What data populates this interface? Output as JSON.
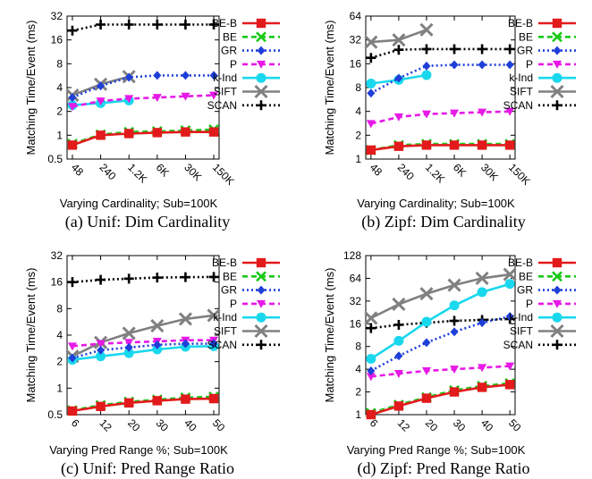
{
  "chart_data": [
    {
      "type": "line",
      "caption": "(a) Unif: Dim Cardinality",
      "xlabel": "Varying Cardinality; Sub=100K",
      "ylabel": "Matching Time/Event (ms)",
      "y_scale": "log2",
      "ylim": [
        0.5,
        32
      ],
      "yticks": [
        "0.5",
        "1",
        "2",
        "4",
        "8",
        "16",
        "32"
      ],
      "categories": [
        "48",
        "240",
        "1.2K",
        "6K",
        "30K",
        "150K"
      ],
      "xtick_rotation": 45,
      "legend": "top-right",
      "series": [
        {
          "name": "BE-B",
          "values": [
            0.75,
            1.0,
            1.05,
            1.08,
            1.1,
            1.1
          ]
        },
        {
          "name": "BE",
          "values": [
            0.78,
            1.02,
            1.1,
            1.12,
            1.15,
            1.18
          ]
        },
        {
          "name": "GR",
          "values": [
            3.0,
            4.2,
            5.4,
            5.7,
            5.7,
            5.7
          ]
        },
        {
          "name": "P",
          "values": [
            2.3,
            2.7,
            2.9,
            3.0,
            3.1,
            3.2
          ]
        },
        {
          "name": "k-Ind",
          "values": [
            2.4,
            2.55,
            2.75,
            null,
            null,
            null
          ]
        },
        {
          "name": "SIFT",
          "values": [
            3.2,
            4.4,
            5.5,
            null,
            null,
            null
          ]
        },
        {
          "name": "SCAN",
          "values": [
            21,
            25,
            25,
            25,
            25,
            25
          ]
        }
      ]
    },
    {
      "type": "line",
      "caption": "(b) Zipf: Dim Cardinality",
      "xlabel": "Varying Cardinality; Sub=100K",
      "ylabel": "Matching Time/Event (ms)",
      "y_scale": "log2",
      "ylim": [
        1,
        64
      ],
      "yticks": [
        "1",
        "2",
        "4",
        "8",
        "16",
        "32",
        "64"
      ],
      "categories": [
        "48",
        "240",
        "1.2K",
        "6K",
        "30K",
        "150K"
      ],
      "xtick_rotation": 45,
      "legend": "top-right",
      "series": [
        {
          "name": "BE-B",
          "values": [
            1.3,
            1.45,
            1.5,
            1.5,
            1.5,
            1.5
          ]
        },
        {
          "name": "BE",
          "values": [
            1.3,
            1.5,
            1.55,
            1.55,
            1.55,
            1.55
          ]
        },
        {
          "name": "GR",
          "values": [
            6.8,
            10.5,
            15,
            15.5,
            15.5,
            15.5
          ]
        },
        {
          "name": "P",
          "values": [
            2.8,
            3.4,
            3.7,
            3.8,
            3.9,
            4.0
          ]
        },
        {
          "name": "k-Ind",
          "values": [
            9.0,
            10.0,
            11.5,
            null,
            null,
            null
          ]
        },
        {
          "name": "SIFT",
          "values": [
            30,
            32,
            43,
            null,
            null,
            null
          ]
        },
        {
          "name": "SCAN",
          "values": [
            19,
            24,
            24.5,
            24.5,
            24.5,
            24.5
          ]
        }
      ]
    },
    {
      "type": "line",
      "caption": "(c) Unif: Pred Range Ratio",
      "xlabel": "Varying Pred Range %; Sub=100K",
      "ylabel": "Matching Time/Event (ms)",
      "y_scale": "log2",
      "ylim": [
        0.5,
        32
      ],
      "yticks": [
        "0.5",
        "1",
        "2",
        "4",
        "8",
        "16",
        "32"
      ],
      "categories": [
        "6",
        "12",
        "20",
        "30",
        "40",
        "50"
      ],
      "xtick_rotation": 45,
      "legend": "top-right",
      "series": [
        {
          "name": "BE-B",
          "values": [
            0.55,
            0.62,
            0.68,
            0.72,
            0.75,
            0.76
          ]
        },
        {
          "name": "BE",
          "values": [
            0.56,
            0.64,
            0.7,
            0.74,
            0.78,
            0.8
          ]
        },
        {
          "name": "GR",
          "values": [
            2.2,
            2.7,
            2.9,
            3.1,
            3.2,
            3.2
          ]
        },
        {
          "name": "P",
          "values": [
            3.0,
            3.2,
            3.3,
            3.4,
            3.5,
            3.5
          ]
        },
        {
          "name": "k-Ind",
          "values": [
            2.1,
            2.3,
            2.5,
            2.75,
            2.95,
            3.0
          ]
        },
        {
          "name": "SIFT",
          "values": [
            2.3,
            3.3,
            4.2,
            5.1,
            6.1,
            6.7
          ]
        },
        {
          "name": "SCAN",
          "values": [
            16,
            17,
            17.5,
            18,
            18.2,
            18.3
          ]
        }
      ]
    },
    {
      "type": "line",
      "caption": "(d) Zipf: Pred Range Ratio",
      "xlabel": "Varying Pred Range %; Sub=100K",
      "ylabel": "Matching Time/Event (ms)",
      "y_scale": "log2",
      "ylim": [
        1,
        128
      ],
      "yticks": [
        "1",
        "2",
        "4",
        "8",
        "16",
        "32",
        "64",
        "128"
      ],
      "categories": [
        "6",
        "12",
        "20",
        "30",
        "40",
        "50"
      ],
      "xtick_rotation": 45,
      "legend": "top-right",
      "series": [
        {
          "name": "BE-B",
          "values": [
            1.0,
            1.3,
            1.65,
            2.0,
            2.3,
            2.5
          ]
        },
        {
          "name": "BE",
          "values": [
            1.05,
            1.35,
            1.7,
            2.1,
            2.4,
            2.6
          ]
        },
        {
          "name": "GR",
          "values": [
            3.8,
            6.0,
            9.0,
            12.5,
            16.5,
            20
          ]
        },
        {
          "name": "P",
          "values": [
            3.2,
            3.5,
            3.8,
            4.0,
            4.2,
            4.4
          ]
        },
        {
          "name": "k-Ind",
          "values": [
            5.5,
            9.5,
            17,
            28,
            42,
            54
          ]
        },
        {
          "name": "SIFT",
          "values": [
            19,
            29,
            40,
            52,
            64,
            72
          ]
        },
        {
          "name": "SCAN",
          "values": [
            14,
            15.5,
            16.5,
            17.5,
            18,
            18.5
          ]
        }
      ]
    }
  ],
  "series_styles": {
    "BE-B": {
      "color": "#e31a1c",
      "marker": "square",
      "dash": "solid"
    },
    "BE": {
      "color": "#19c919",
      "marker": "x",
      "dash": "dashed"
    },
    "GR": {
      "color": "#1f3fd8",
      "marker": "diamond",
      "dash": "dotted"
    },
    "P": {
      "color": "#e619e6",
      "marker": "triangle-down",
      "dash": "dashed"
    },
    "k-Ind": {
      "color": "#19d8ee",
      "marker": "circle",
      "dash": "solid"
    },
    "SIFT": {
      "color": "#808080",
      "marker": "x-large",
      "dash": "solid"
    },
    "SCAN": {
      "color": "#000000",
      "marker": "plus",
      "dash": "dotted"
    }
  }
}
